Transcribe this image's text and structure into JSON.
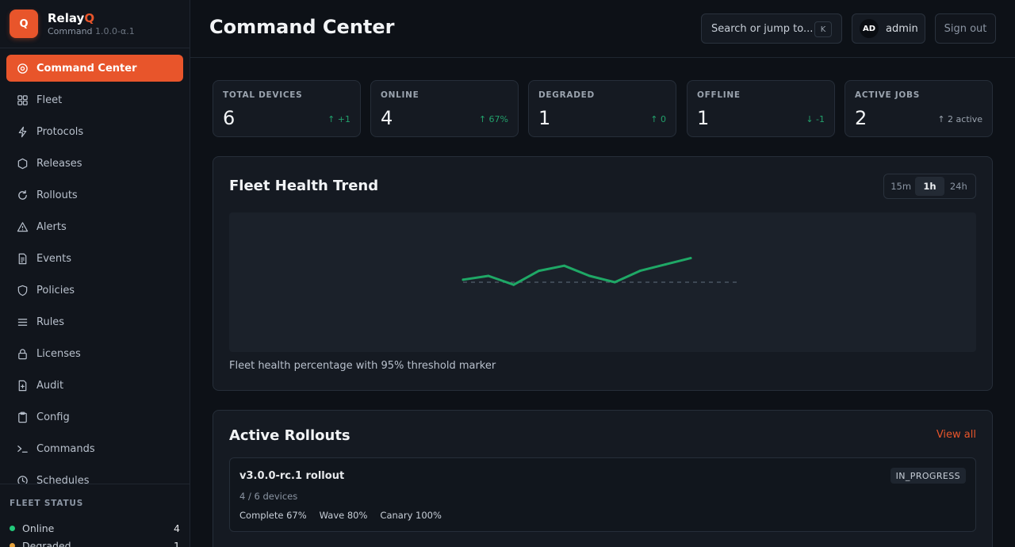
{
  "brand": {
    "logo_letter": "Q",
    "name_main": "Relay",
    "name_accent": "Q",
    "subtitle": "Command",
    "version": "1.0.0-α.1",
    "accent_color": "#e8552b"
  },
  "sidebar": {
    "items": [
      {
        "label": "Command Center",
        "icon": "target-icon",
        "active": true
      },
      {
        "label": "Fleet",
        "icon": "grid-icon"
      },
      {
        "label": "Protocols",
        "icon": "bolt-icon"
      },
      {
        "label": "Releases",
        "icon": "hexagon-icon"
      },
      {
        "label": "Rollouts",
        "icon": "refresh-icon"
      },
      {
        "label": "Alerts",
        "icon": "warning-icon"
      },
      {
        "label": "Events",
        "icon": "document-icon"
      },
      {
        "label": "Policies",
        "icon": "shield-icon"
      },
      {
        "label": "Rules",
        "icon": "list-icon"
      },
      {
        "label": "Licenses",
        "icon": "lock-icon"
      },
      {
        "label": "Audit",
        "icon": "file-plus-icon"
      },
      {
        "label": "Config",
        "icon": "clipboard-icon"
      },
      {
        "label": "Commands",
        "icon": "terminal-icon"
      },
      {
        "label": "Schedules",
        "icon": "clock-icon"
      }
    ]
  },
  "fleet_status": {
    "title": "FLEET STATUS",
    "rows": [
      {
        "label": "Online",
        "count": "4",
        "color": "#22c97b"
      },
      {
        "label": "Degraded",
        "count": "1",
        "color": "#e6a23c"
      }
    ]
  },
  "header": {
    "title": "Command Center",
    "search_label": "Search or jump to...",
    "search_shortcut": "K",
    "user_initials": "AD",
    "user_name": "admin",
    "signout_label": "Sign out"
  },
  "stats": [
    {
      "label": "TOTAL DEVICES",
      "value": "6",
      "delta": "↑ +1",
      "delta_color": "#22a06b"
    },
    {
      "label": "ONLINE",
      "value": "4",
      "delta": "↑ 67%",
      "delta_color": "#22a06b"
    },
    {
      "label": "DEGRADED",
      "value": "1",
      "delta": "↑ 0",
      "delta_color": "#22a06b"
    },
    {
      "label": "OFFLINE",
      "value": "1",
      "delta": "↓ -1",
      "delta_color": "#22a06b"
    },
    {
      "label": "ACTIVE JOBS",
      "value": "2",
      "delta": "↑ 2 active",
      "delta_color": "#9aa3ae"
    }
  ],
  "trend": {
    "title": "Fleet Health Trend",
    "ranges": [
      {
        "label": "15m"
      },
      {
        "label": "1h",
        "selected": true
      },
      {
        "label": "24h"
      }
    ],
    "caption": "Fleet health percentage with 95% threshold marker"
  },
  "chart_data": {
    "type": "line",
    "x": [
      0,
      1,
      2,
      3,
      4,
      5,
      6,
      7,
      8,
      9
    ],
    "series": [
      {
        "values": [
          95.2,
          95.5,
          94.8,
          95.9,
          96.3,
          95.5,
          95.0,
          95.9,
          96.4,
          96.9
        ],
        "color": "#1fa866"
      }
    ],
    "threshold": 95,
    "ylim": [
      90,
      100
    ],
    "grid": false
  },
  "rollouts": {
    "title": "Active Rollouts",
    "view_all_label": "View all",
    "items": [
      {
        "name": "v3.0.0-rc.1 rollout",
        "status": "IN_PROGRESS",
        "devices": "4 / 6 devices",
        "metrics": [
          "Complete 67%",
          "Wave 80%",
          "Canary 100%"
        ]
      }
    ]
  }
}
